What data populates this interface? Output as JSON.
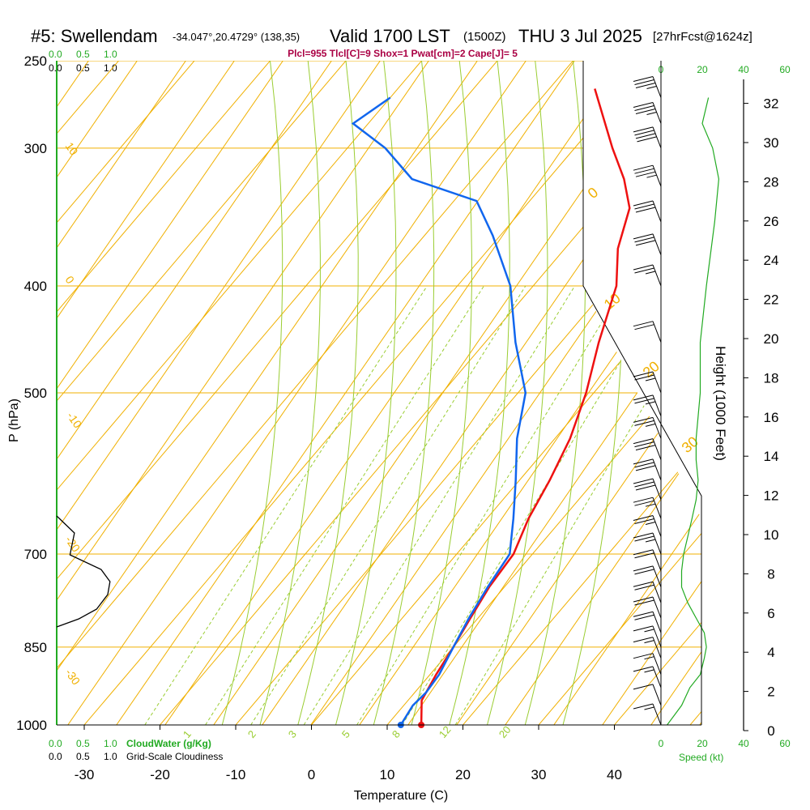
{
  "header": {
    "station": "#5: Swellendam",
    "coords": "-34.047°,20.4729° (138,35)",
    "valid": "Valid 1700 LST",
    "zulu": "(1500Z)",
    "date": "THU 3 Jul 2025",
    "forecast": "[27hrFcst@1624z]",
    "indices": "Plcl=955 Tlcl[C]=9 Shox=1 Pwat[cm]=2 Cape[J]= 5"
  },
  "top_scale": {
    "green": [
      "0.0",
      "0.5",
      "1.0"
    ],
    "black": [
      "0.0",
      "0.5",
      "1.0"
    ]
  },
  "bottom_scale": {
    "green": [
      "0.0",
      "0.5",
      "1.0"
    ],
    "green_label": "CloudWater (g/Kg)",
    "black": [
      "0.0",
      "0.5",
      "1.0"
    ],
    "black_label": "Grid-Scale Cloudiness"
  },
  "wind_scale": {
    "top": [
      "0",
      "20",
      "40",
      "60"
    ],
    "bottom": [
      "0",
      "20",
      "40",
      "60"
    ],
    "label": "Speed (kt)"
  },
  "colors": {
    "temperature": "#ee1111",
    "dewpoint": "#1166ee",
    "isobar": "#f0b000",
    "dry_adiabat": "#9acd32",
    "moist_adiabat": "#9acd32",
    "mixing_ratio": "#9acd32",
    "speed": "#22aa22",
    "indices": "#aa0044",
    "cloud": "#000000"
  },
  "chart_data": {
    "type": "line",
    "title": "#5: Swellendam -34.047°,20.4729° (138,35) Valid 1700 LST (1500Z) THU 3 Jul 2025 [27hrFcst@1624z]",
    "xlabel": "Temperature (C)",
    "ylabel": "P (hPa)",
    "y2label": "Height (1000 Feet)",
    "x_ticks": [
      -30,
      -20,
      -10,
      0,
      10,
      20,
      30,
      40
    ],
    "y_ticks": [
      250,
      300,
      400,
      500,
      700,
      850,
      1000
    ],
    "height_ticks": [
      0,
      2,
      4,
      6,
      8,
      10,
      12,
      14,
      16,
      18,
      20,
      22,
      24,
      26,
      28,
      30,
      32
    ],
    "isotherm_labels": [
      "-30",
      "-20",
      "-10",
      "0",
      "10",
      "20",
      "30"
    ],
    "mixing_ratio_labels": [
      "1",
      "2",
      "3",
      "5",
      "8",
      "12",
      "20"
    ],
    "series": [
      {
        "name": "Temperature",
        "points": [
          [
            14.5,
            1000
          ],
          [
            11.8,
            950
          ],
          [
            10.8,
            900
          ],
          [
            10.0,
            850
          ],
          [
            9.0,
            800
          ],
          [
            8.0,
            750
          ],
          [
            7.5,
            700
          ],
          [
            5.5,
            650
          ],
          [
            4.0,
            600
          ],
          [
            2.0,
            550
          ],
          [
            -1.0,
            500
          ],
          [
            -5.0,
            450
          ],
          [
            -9.0,
            400
          ],
          [
            -13.0,
            370
          ],
          [
            -16.0,
            340
          ],
          [
            -20.0,
            320
          ],
          [
            -25.0,
            300
          ],
          [
            -34.0,
            265
          ]
        ]
      },
      {
        "name": "Dewpoint",
        "points": [
          [
            11.8,
            1000
          ],
          [
            11.2,
            960
          ],
          [
            11.5,
            935
          ],
          [
            11.2,
            900
          ],
          [
            10.0,
            850
          ],
          [
            8.8,
            800
          ],
          [
            7.8,
            750
          ],
          [
            7.0,
            700
          ],
          [
            3.5,
            650
          ],
          [
            -0.5,
            600
          ],
          [
            -5.0,
            550
          ],
          [
            -9.0,
            500
          ],
          [
            -16.0,
            450
          ],
          [
            -23.0,
            400
          ],
          [
            -31.0,
            360
          ],
          [
            -37.0,
            335
          ],
          [
            -48.0,
            320
          ],
          [
            -55.0,
            300
          ],
          [
            -62.0,
            285
          ],
          [
            -60.0,
            270
          ]
        ]
      }
    ],
    "wind_barbs": [
      {
        "p": 1000,
        "kt": 15
      },
      {
        "p": 960,
        "kt": 12
      },
      {
        "p": 925,
        "kt": 15
      },
      {
        "p": 900,
        "kt": 17
      },
      {
        "p": 870,
        "kt": 18
      },
      {
        "p": 850,
        "kt": 19
      },
      {
        "p": 825,
        "kt": 20
      },
      {
        "p": 800,
        "kt": 21
      },
      {
        "p": 775,
        "kt": 22
      },
      {
        "p": 750,
        "kt": 22
      },
      {
        "p": 725,
        "kt": 24
      },
      {
        "p": 700,
        "kt": 25
      },
      {
        "p": 675,
        "kt": 25
      },
      {
        "p": 650,
        "kt": 28
      },
      {
        "p": 625,
        "kt": 30
      },
      {
        "p": 600,
        "kt": 32
      },
      {
        "p": 575,
        "kt": 30
      },
      {
        "p": 550,
        "kt": 28
      },
      {
        "p": 525,
        "kt": 27
      },
      {
        "p": 500,
        "kt": 25
      },
      {
        "p": 450,
        "kt": 24
      },
      {
        "p": 400,
        "kt": 27
      },
      {
        "p": 375,
        "kt": 30
      },
      {
        "p": 350,
        "kt": 33
      },
      {
        "p": 325,
        "kt": 38
      },
      {
        "p": 300,
        "kt": 40
      },
      {
        "p": 285,
        "kt": 38
      },
      {
        "p": 270,
        "kt": 35
      }
    ],
    "wind_speed": [
      [
        3,
        1000
      ],
      [
        10,
        960
      ],
      [
        14,
        925
      ],
      [
        19,
        900
      ],
      [
        21,
        870
      ],
      [
        22,
        850
      ],
      [
        21,
        825
      ],
      [
        17,
        800
      ],
      [
        13,
        775
      ],
      [
        10,
        750
      ],
      [
        10,
        725
      ],
      [
        11,
        700
      ],
      [
        13,
        675
      ],
      [
        15,
        650
      ],
      [
        17,
        625
      ],
      [
        18,
        600
      ],
      [
        17,
        575
      ],
      [
        17,
        550
      ],
      [
        18,
        525
      ],
      [
        19,
        500
      ],
      [
        19,
        450
      ],
      [
        22,
        400
      ],
      [
        26,
        350
      ],
      [
        28,
        320
      ],
      [
        25,
        300
      ],
      [
        20,
        285
      ],
      [
        23,
        270
      ]
    ],
    "grid_cloudiness": [
      [
        0.0,
        637
      ],
      [
        0.16,
        658
      ],
      [
        0.12,
        685
      ],
      [
        0.4,
        703
      ],
      [
        0.48,
        718
      ],
      [
        0.46,
        734
      ],
      [
        0.36,
        752
      ],
      [
        0.2,
        764
      ],
      [
        0.0,
        774
      ]
    ]
  },
  "labels": {
    "height_axis": "Height (1000 Feet)",
    "p_axis": "P (hPa)",
    "t_axis": "Temperature (C)"
  }
}
